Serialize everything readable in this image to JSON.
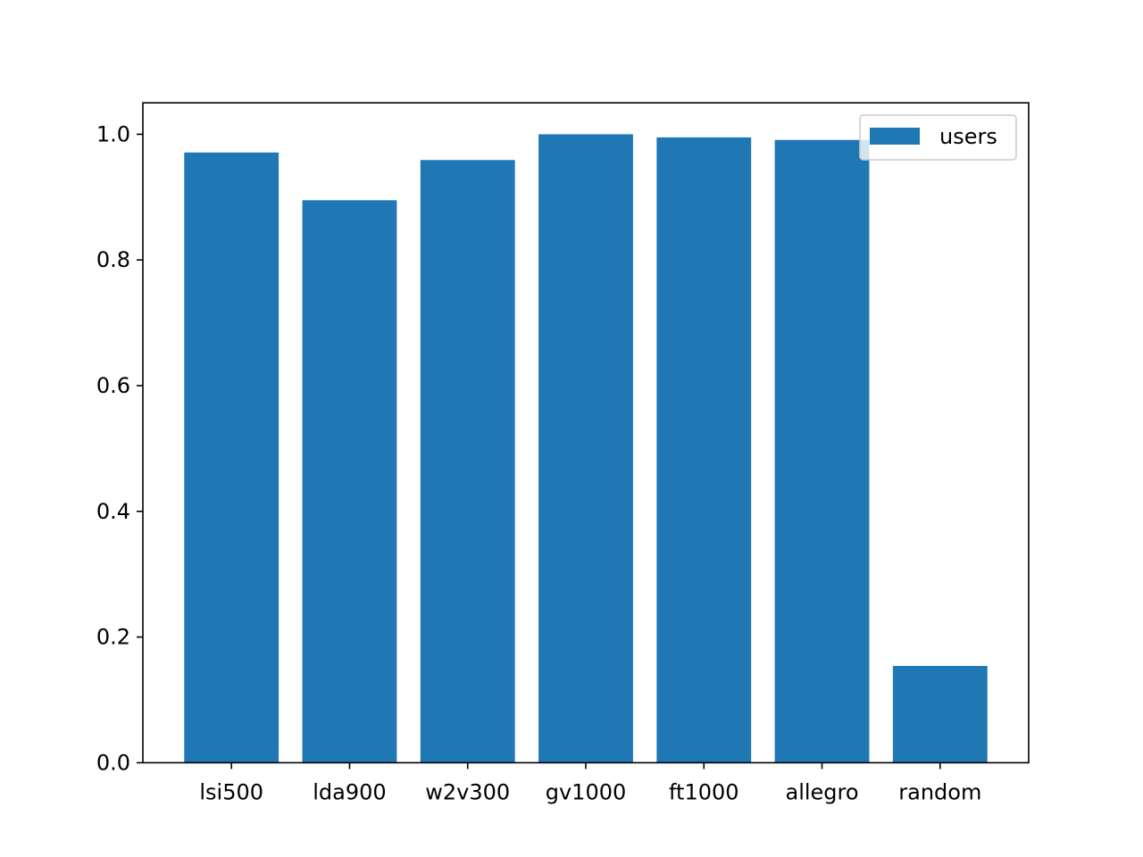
{
  "chart_data": {
    "type": "bar",
    "categories": [
      "lsi500",
      "lda900",
      "w2v300",
      "gv1000",
      "ft1000",
      "allegro",
      "random"
    ],
    "series": [
      {
        "name": "users",
        "values": [
          0.971,
          0.895,
          0.959,
          1.0,
          0.995,
          0.991,
          0.154
        ],
        "color": "#1f77b4"
      }
    ],
    "title": "",
    "xlabel": "",
    "ylabel": "",
    "ylim": [
      0,
      1.05
    ],
    "yticks": [
      0.0,
      0.2,
      0.4,
      0.6,
      0.8,
      1.0
    ],
    "ytick_labels": [
      "0.0",
      "0.2",
      "0.4",
      "0.6",
      "0.8",
      "1.0"
    ],
    "grid": false,
    "legend": {
      "position": "top-right",
      "entries": [
        "users"
      ]
    }
  }
}
